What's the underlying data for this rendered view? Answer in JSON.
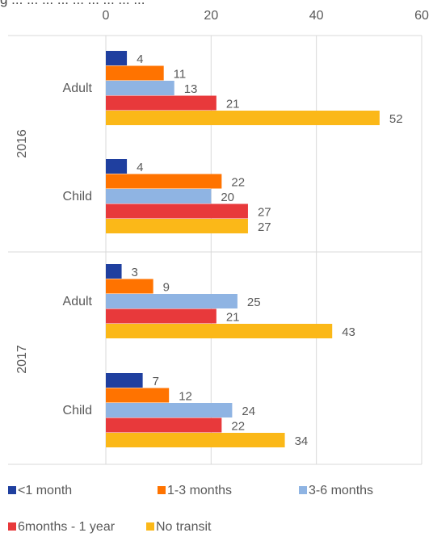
{
  "chart_data": {
    "type": "bar",
    "orientation": "horizontal",
    "title": "",
    "title_fragment": "g ... ... ... ... ... ... ... ... ...",
    "xlim": [
      0,
      60
    ],
    "x_ticks": [
      0,
      20,
      40,
      60
    ],
    "x_ticks_labels": [
      "0",
      "20",
      "40",
      "60"
    ],
    "grid": true,
    "legend_position": "bottom",
    "series_names": [
      "<1 month",
      "1-3 months",
      "3-6 months",
      "6months - 1 year",
      "No transit"
    ],
    "colors": [
      "#1f3f9f",
      "#ff7300",
      "#8fb4e3",
      "#e8393b",
      "#fbb818"
    ],
    "groups": [
      {
        "year": "2016",
        "category": "Adult",
        "values": [
          4,
          11,
          13,
          21,
          52
        ]
      },
      {
        "year": "2016",
        "category": "Child",
        "values": [
          4,
          22,
          20,
          27,
          27
        ]
      },
      {
        "year": "2017",
        "category": "Adult",
        "values": [
          3,
          9,
          25,
          21,
          43
        ]
      },
      {
        "year": "2017",
        "category": "Child",
        "values": [
          7,
          12,
          24,
          22,
          34
        ]
      }
    ]
  }
}
